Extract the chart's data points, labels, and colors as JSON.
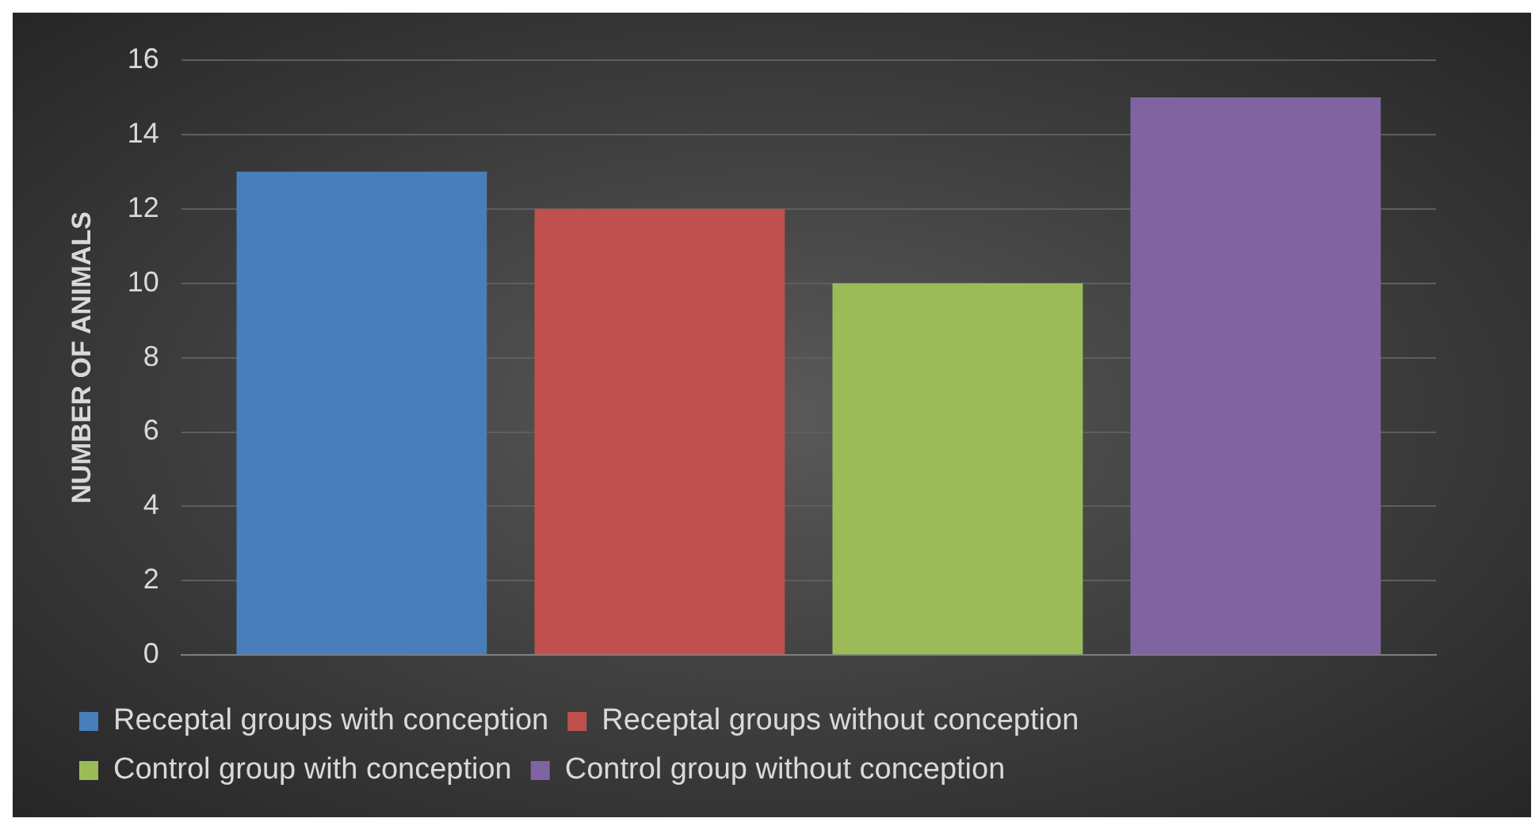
{
  "chart_data": {
    "type": "bar",
    "ylabel": "NUMBER OF ANIMALS",
    "categories": [
      null
    ],
    "series": [
      {
        "name": "Receptal groups with conception",
        "color": "#4a7ebb",
        "values": [
          13
        ]
      },
      {
        "name": "Receptal groups without conception",
        "color": "#c0504d",
        "values": [
          12
        ]
      },
      {
        "name": "Control group with conception",
        "color": "#9bbb59",
        "values": [
          10
        ]
      },
      {
        "name": "Control group without conception",
        "color": "#8064a2",
        "values": [
          15
        ]
      }
    ],
    "ylim": [
      0,
      16
    ],
    "yticks": [
      0,
      2,
      4,
      6,
      8,
      10,
      12,
      14,
      16
    ],
    "grid": "y",
    "legend": "bottom"
  }
}
